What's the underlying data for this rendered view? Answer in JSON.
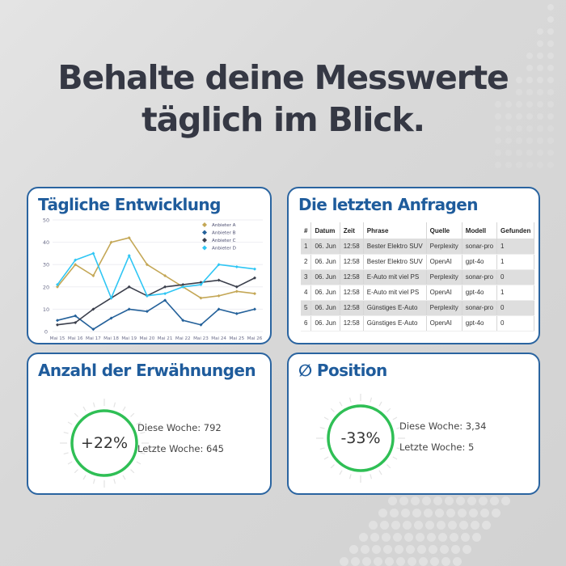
{
  "headline": {
    "line1": "Behalte deine Messwerte",
    "line2": "täglich im Blick."
  },
  "colors": {
    "card_border": "#2a64a0",
    "card_title": "#1f5c9c",
    "ring": "#2fbf55",
    "headline": "#353844"
  },
  "chart_card": {
    "title": "Tägliche Entwicklung"
  },
  "chart_data": {
    "type": "line",
    "title": "Tägliche Entwicklung",
    "xlabel": "",
    "ylabel": "",
    "ylim": [
      0,
      50
    ],
    "yticks": [
      0,
      10,
      20,
      30,
      40,
      50
    ],
    "grid": true,
    "legend_position": "top-right",
    "x": [
      "Mai 15",
      "Mai 16",
      "Mai 17",
      "Mai 18",
      "Mai 19",
      "Mai 20",
      "Mai 21",
      "Mai 22",
      "Mai 23",
      "Mai 24",
      "Mai 25",
      "Mai 26"
    ],
    "series": [
      {
        "name": "Anbieter A",
        "color": "#c4a756",
        "values": [
          20,
          30,
          25,
          40,
          42,
          30,
          25,
          20,
          15,
          16,
          18,
          17
        ]
      },
      {
        "name": "Anbieter B",
        "color": "#24619a",
        "values": [
          5,
          7,
          1,
          6,
          10,
          9,
          14,
          5,
          3,
          10,
          8,
          10
        ]
      },
      {
        "name": "Anbieter C",
        "color": "#3b3f4c",
        "values": [
          3,
          4,
          10,
          15,
          20,
          16,
          20,
          21,
          22,
          23,
          20,
          24
        ]
      },
      {
        "name": "Anbieter D",
        "color": "#2fc6f4",
        "values": [
          21,
          32,
          35,
          15,
          34,
          16,
          17,
          20,
          21,
          30,
          29,
          28
        ]
      }
    ]
  },
  "table_card": {
    "title": "Die letzten Anfragen",
    "columns": [
      "#",
      "Datum",
      "Zeit",
      "Phrase",
      "Quelle",
      "Modell",
      "Gefunden"
    ],
    "rows": [
      [
        "1",
        "06. Jun",
        "12:58",
        "Bester Elektro SUV",
        "Perplexity",
        "sonar-pro",
        "1"
      ],
      [
        "2",
        "06. Jun",
        "12:58",
        "Bester Elektro SUV",
        "OpenAI",
        "gpt-4o",
        "1"
      ],
      [
        "3",
        "06. Jun",
        "12:58",
        "E-Auto mit viel PS",
        "Perplexity",
        "sonar-pro",
        "0"
      ],
      [
        "4",
        "06. Jun",
        "12:58",
        "E-Auto mit viel PS",
        "OpenAI",
        "gpt-4o",
        "1"
      ],
      [
        "5",
        "06. Jun",
        "12:58",
        "Günstiges E-Auto",
        "Perplexity",
        "sonar-pro",
        "0"
      ],
      [
        "6",
        "06. Jun",
        "12:58",
        "Günstiges E-Auto",
        "OpenAI",
        "gpt-4o",
        "0"
      ]
    ]
  },
  "mentions_card": {
    "title": "Anzahl der Erwähnungen",
    "change": "+22%",
    "this_week": "Diese Woche: 792",
    "last_week": "Letzte Woche: 645"
  },
  "position_card": {
    "title": "∅ Position",
    "change": "-33%",
    "this_week": "Diese Woche: 3,34",
    "last_week": "Letzte Woche: 5"
  }
}
